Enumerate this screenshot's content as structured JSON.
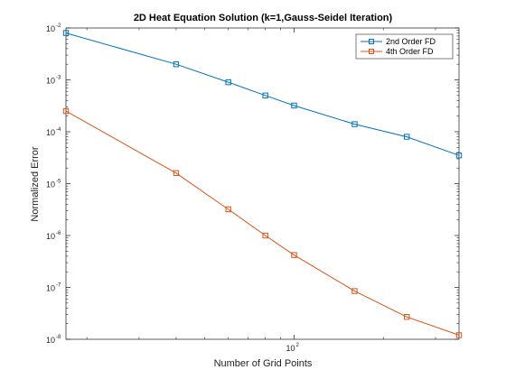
{
  "chart_data": {
    "type": "line",
    "title": "2D Heat Equation Solution (k=1,Gauss-Seidel Iteration)",
    "xlabel": "Number of Grid Points",
    "ylabel": "Normalized Error",
    "xscale": "log",
    "yscale": "log",
    "xlim": [
      17,
      360
    ],
    "ylim": [
      1e-08,
      0.01
    ],
    "x_ticks": [
      {
        "base": "10",
        "exp": "2",
        "value": 100
      }
    ],
    "y_ticks": [
      {
        "base": "10",
        "exp": "-8",
        "value": 1e-08
      },
      {
        "base": "10",
        "exp": "-7",
        "value": 1e-07
      },
      {
        "base": "10",
        "exp": "-6",
        "value": 1e-06
      },
      {
        "base": "10",
        "exp": "-5",
        "value": 1e-05
      },
      {
        "base": "10",
        "exp": "-4",
        "value": 0.0001
      },
      {
        "base": "10",
        "exp": "-3",
        "value": 0.001
      },
      {
        "base": "10",
        "exp": "-2",
        "value": 0.01
      }
    ],
    "legend_position": "top-right",
    "grid": false,
    "series": [
      {
        "name": "2nd Order FD",
        "color": "#0072BD",
        "marker": "square",
        "x": [
          17,
          40,
          60,
          80,
          100,
          160,
          240,
          360
        ],
        "y": [
          0.008,
          0.002,
          0.0009,
          0.0005,
          0.00032,
          0.00014,
          8e-05,
          3.5e-05
        ]
      },
      {
        "name": "4th Order FD",
        "color": "#D95319",
        "marker": "square",
        "x": [
          17,
          40,
          60,
          80,
          100,
          160,
          240,
          360
        ],
        "y": [
          0.00025,
          1.6e-05,
          3.2e-06,
          1e-06,
          4.2e-07,
          8.5e-08,
          2.7e-08,
          1.2e-08
        ]
      }
    ]
  }
}
